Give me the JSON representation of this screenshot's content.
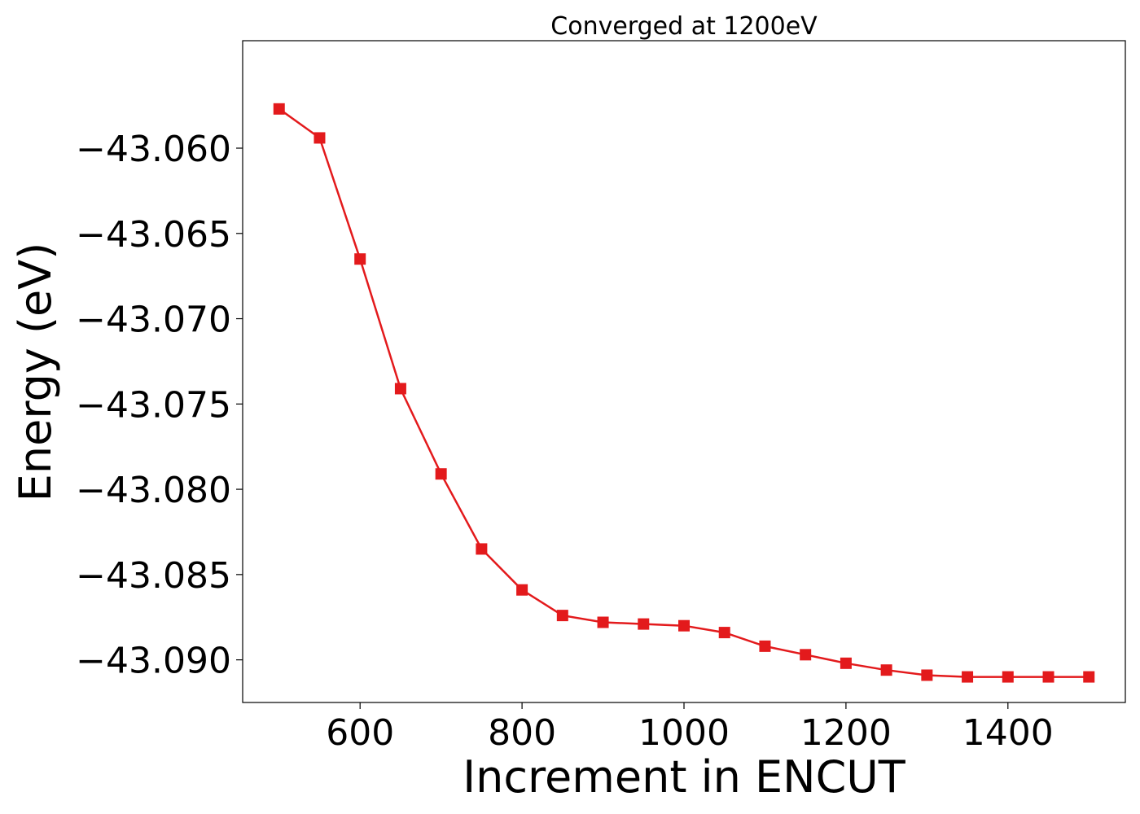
{
  "chart_data": {
    "type": "line",
    "title": "Converged at 1200eV",
    "xlabel": "Increment in ENCUT",
    "ylabel": "Energy (eV)",
    "xlim": [
      455,
      1545
    ],
    "ylim": [
      -43.0925,
      -43.0537
    ],
    "xticks": [
      600,
      800,
      1000,
      1200,
      1400
    ],
    "yticks": [
      -43.06,
      -43.065,
      -43.07,
      -43.075,
      -43.08,
      -43.085,
      -43.09
    ],
    "ytick_labels": [
      "−43.060",
      "−43.065",
      "−43.070",
      "−43.075",
      "−43.080",
      "−43.085",
      "−43.090"
    ],
    "grid": false,
    "series": [
      {
        "color": "#e31a1c",
        "marker": "square",
        "x": [
          500,
          550,
          600,
          650,
          700,
          750,
          800,
          850,
          900,
          950,
          1000,
          1050,
          1100,
          1150,
          1200,
          1250,
          1300,
          1350,
          1400,
          1450,
          1500
        ],
        "y": [
          -43.0577,
          -43.0594,
          -43.0665,
          -43.0741,
          -43.0791,
          -43.0835,
          -43.0859,
          -43.0874,
          -43.0878,
          -43.0879,
          -43.088,
          -43.0884,
          -43.0892,
          -43.0897,
          -43.0902,
          -43.0906,
          -43.0909,
          -43.091,
          -43.091,
          -43.091,
          -43.091
        ]
      }
    ]
  }
}
